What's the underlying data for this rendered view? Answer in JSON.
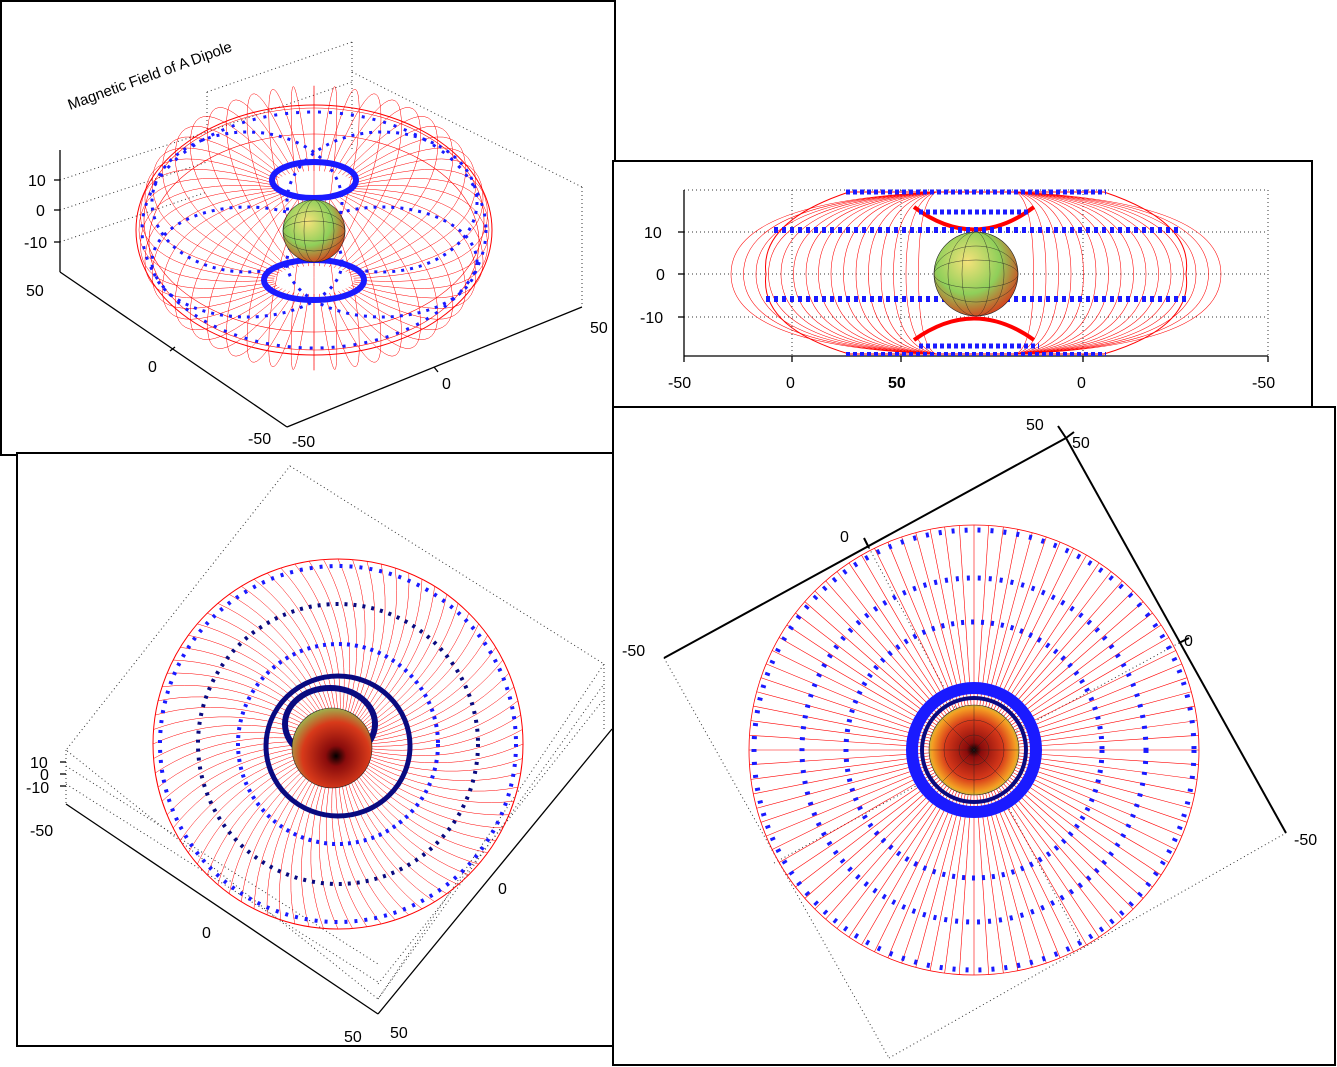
{
  "panels": {
    "top_left": {
      "title": "Magnetic Field of A Dipole",
      "z_ticks": [
        "10",
        "0",
        "-10"
      ],
      "y_ticks": [
        "50",
        "0",
        "-50"
      ],
      "x_ticks": [
        "-50",
        "0",
        "50"
      ]
    },
    "top_right": {
      "y_ticks": [
        "10",
        "0",
        "-10"
      ],
      "x_ticks": [
        "-50",
        "0",
        "50",
        "0",
        "-50"
      ]
    },
    "bottom_left": {
      "z_ticks": [
        "10",
        "0",
        "-10"
      ],
      "y_ticks": [
        "-50",
        "0",
        "50"
      ],
      "x_ticks": [
        "0",
        "50"
      ]
    },
    "bottom_right": {
      "ticks_top": [
        "50",
        "50"
      ],
      "ticks_left": [
        "0",
        "-50"
      ],
      "ticks_right": [
        "0",
        "-50"
      ]
    }
  },
  "colors": {
    "field_lines": "#ff0000",
    "arrows": "#1a1aff",
    "arrows_dark": "#0a0a80",
    "grid": "#333333",
    "sphere_light": "#f5e27a",
    "sphere_mid": "#8fcf5a",
    "sphere_dark": "#d83a1a"
  }
}
